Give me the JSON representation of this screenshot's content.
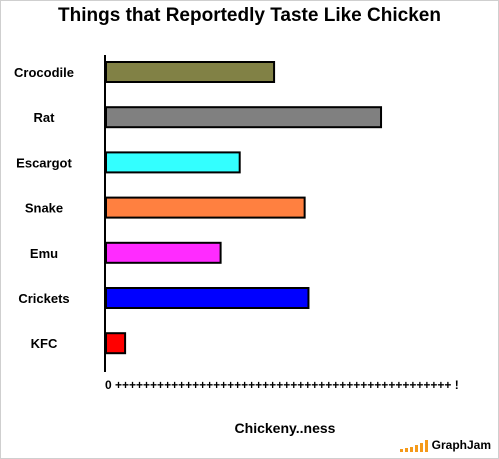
{
  "chart_data": {
    "type": "bar",
    "orientation": "horizontal",
    "title": "Things that Reportedly Taste Like Chicken",
    "xlabel": "Chickeny..ness",
    "ylabel": "",
    "categories": [
      "Crocodile",
      "Rat",
      "Escargot",
      "Snake",
      "Emu",
      "Crickets",
      "KFC"
    ],
    "values": [
      44,
      72,
      35,
      52,
      30,
      53,
      5
    ],
    "colors": [
      "#818145",
      "#808080",
      "#33ffff",
      "#ff8040",
      "#ff2bff",
      "#0000ff",
      "#ff0000"
    ],
    "xlim": [
      0,
      100
    ],
    "x_axis_ticks": "0 ++++++++++++++++++++++++++++++++++++++++++++++++ !",
    "grid": false,
    "legend": "none"
  },
  "watermark": {
    "text": "GraphJam",
    "accent_color": "#f59a1a"
  }
}
